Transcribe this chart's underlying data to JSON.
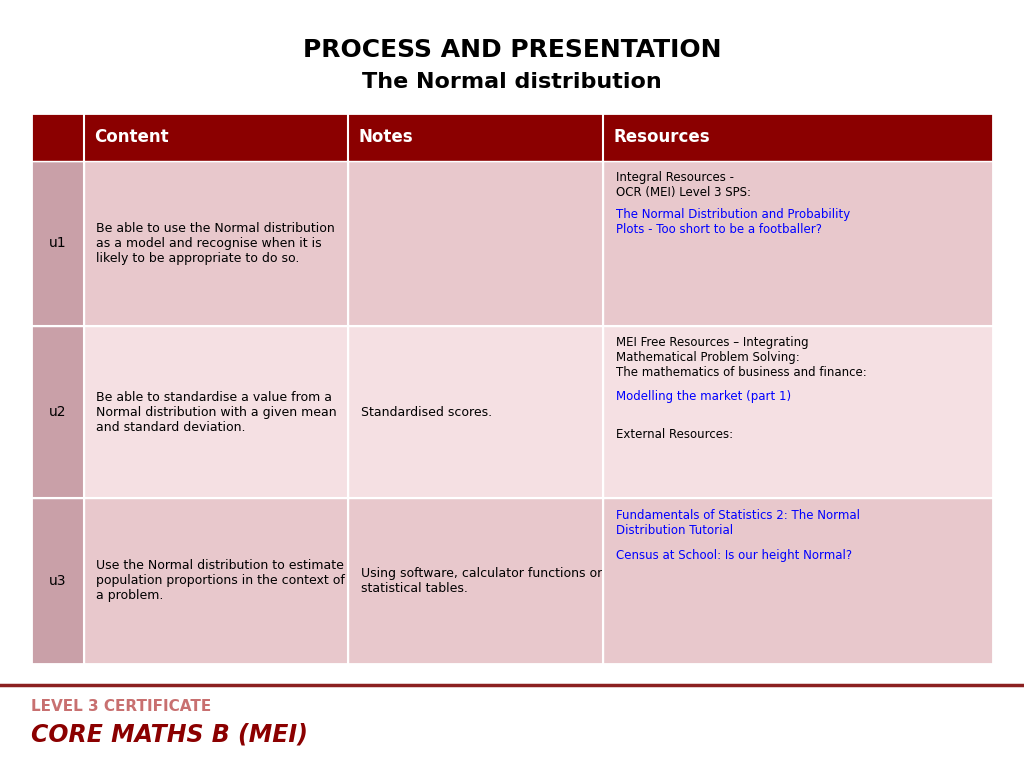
{
  "title_line1": "PROCESS AND PRESENTATION",
  "title_line2": "The Normal distribution",
  "bg_color": "#ffffff",
  "header_bg": "#8B0000",
  "header_text_color": "#ffffff",
  "row_colors": [
    "#E8C8CC",
    "#F5E0E3",
    "#E8C8CC"
  ],
  "label_col_color": "#C9A0A8",
  "col_headers": [
    "Content",
    "Notes",
    "Resources"
  ],
  "rows": [
    {
      "id": "u1",
      "content": "Be able to use the Normal distribution\nas a model and recognise when it is\nlikely to be appropriate to do so.",
      "notes": "",
      "res_plain1": "Integral Resources -\nOCR (MEI) Level 3 SPS:",
      "res_link1": "The Normal Distribution and Probability\nPlots - Too short to be a footballer?",
      "res_plain2": "",
      "res_link2": "",
      "res_plain3": ""
    },
    {
      "id": "u2",
      "content": "Be able to standardise a value from a\nNormal distribution with a given mean\nand standard deviation.",
      "notes": "Standardised scores.",
      "res_plain1": "MEI Free Resources – Integrating\nMathematical Problem Solving:\nThe mathematics of business and finance:",
      "res_link1": "Modelling the market (part 1)",
      "res_plain2": "\nExternal Resources:",
      "res_link2": "",
      "res_plain3": ""
    },
    {
      "id": "u3",
      "content": "Use the Normal distribution to estimate\npopulation proportions in the context of\na problem.",
      "notes": "Using software, calculator functions or\nstatistical tables.",
      "res_plain1": "",
      "res_link1": "Fundamentals of Statistics 2: The Normal\nDistribution Tutorial",
      "res_plain2": "",
      "res_link2": "Census at School: Is our height Normal?",
      "res_plain3": ""
    }
  ],
  "footer_line_color": "#8B2020",
  "footer_label": "LEVEL 3 CERTIFICATE",
  "footer_title": "CORE MATHS B (MEI)",
  "footer_label_color": "#C87070",
  "footer_title_color": "#8B0000"
}
